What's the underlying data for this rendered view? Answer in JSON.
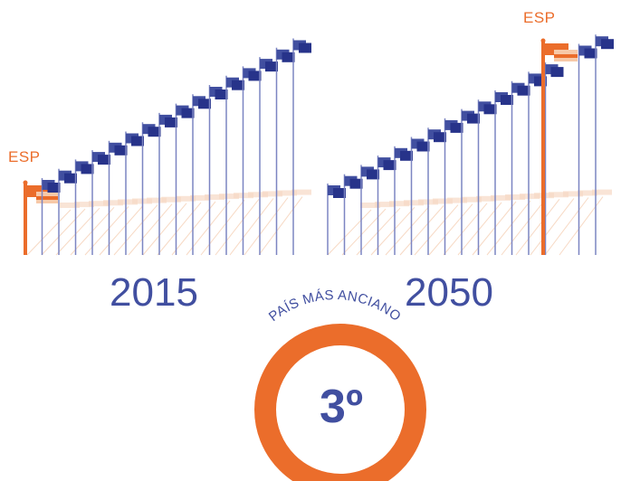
{
  "colors": {
    "blue": "#414fa0",
    "blue_dark": "#27338a",
    "orange": "#eb6d2b",
    "orange_light": "#f7c9a8",
    "stripe": "#f7d9c4"
  },
  "panel_2015": {
    "year": "2015",
    "flag_label": "ESP",
    "esp_position": 1,
    "total_flags": 17
  },
  "panel_2050": {
    "year": "2050",
    "flag_label": "ESP",
    "esp_position": 15,
    "total_flags": 17
  },
  "badge": {
    "arc_text": "PAÍS MÁS ANCIANO",
    "rank": "3º"
  },
  "icons": [
    "flag-icon",
    "ring-badge-icon"
  ]
}
